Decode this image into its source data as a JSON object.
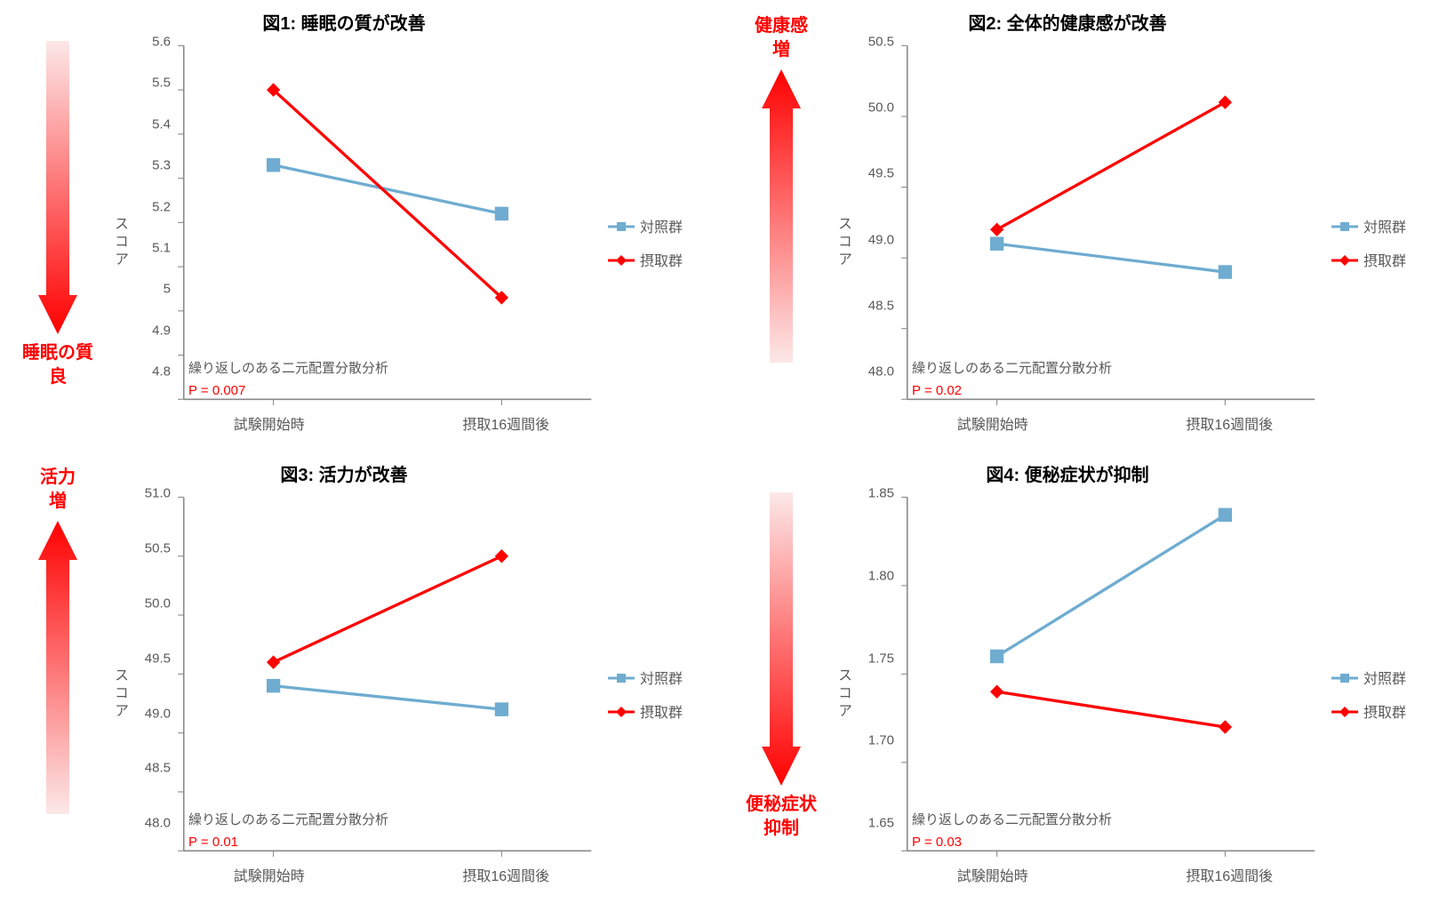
{
  "colors": {
    "control": "#6facd0",
    "intake": "#ff0000",
    "axis": "#8a8a8a",
    "text": "#595959",
    "pval": "#ff0000",
    "arrow_top": "#fce8e8",
    "arrow_bottom": "#ff0000"
  },
  "legend": {
    "control": "対照群",
    "intake": "摂取群"
  },
  "ylabel": "スコア",
  "xcats": [
    "試験開始時",
    "摂取16週間後"
  ],
  "note_text": "繰り返しのある二元配置分散分析",
  "panels": [
    {
      "id": "fig1",
      "title": "図1: 睡眠の質が改善",
      "ylim": [
        4.8,
        5.6
      ],
      "ytick_step": 0.1,
      "ytick_decimals": 1,
      "ytick_drop_trailing_zero": true,
      "control": [
        5.33,
        5.22
      ],
      "intake": [
        5.5,
        5.03
      ],
      "pval": "P = 0.007",
      "arrow": {
        "direction": "down",
        "label_top": null,
        "label_bottom": "睡眠の質\n良"
      }
    },
    {
      "id": "fig2",
      "title": "図2: 全体的健康感が改善",
      "ylim": [
        48.0,
        50.5
      ],
      "ytick_step": 0.5,
      "ytick_decimals": 1,
      "ytick_drop_trailing_zero": false,
      "control": [
        49.1,
        48.9
      ],
      "intake": [
        49.2,
        50.1
      ],
      "pval": "P = 0.02",
      "arrow": {
        "direction": "up",
        "label_top": "健康感\n増",
        "label_bottom": null
      }
    },
    {
      "id": "fig3",
      "title": "図3: 活力が改善",
      "ylim": [
        48.0,
        51.0
      ],
      "ytick_step": 0.5,
      "ytick_decimals": 1,
      "ytick_drop_trailing_zero": false,
      "control": [
        49.4,
        49.2
      ],
      "intake": [
        49.6,
        50.5
      ],
      "pval": "P = 0.01",
      "arrow": {
        "direction": "up",
        "label_top": "活力\n増",
        "label_bottom": null
      }
    },
    {
      "id": "fig4",
      "title": "図4: 便秘症状が抑制",
      "ylim": [
        1.65,
        1.85
      ],
      "ytick_step": 0.05,
      "ytick_decimals": 2,
      "ytick_drop_trailing_zero": false,
      "control": [
        1.76,
        1.84
      ],
      "intake": [
        1.74,
        1.72
      ],
      "pval": "P = 0.03",
      "arrow": {
        "direction": "down",
        "label_top": null,
        "label_bottom": "便秘症状\n抑制"
      }
    }
  ],
  "style": {
    "line_width": 3,
    "marker_size": 7,
    "title_fontsize": 20,
    "axis_fontsize": 15,
    "legend_fontsize": 16,
    "arrow_label_fontsize": 20,
    "background": "#ffffff"
  }
}
